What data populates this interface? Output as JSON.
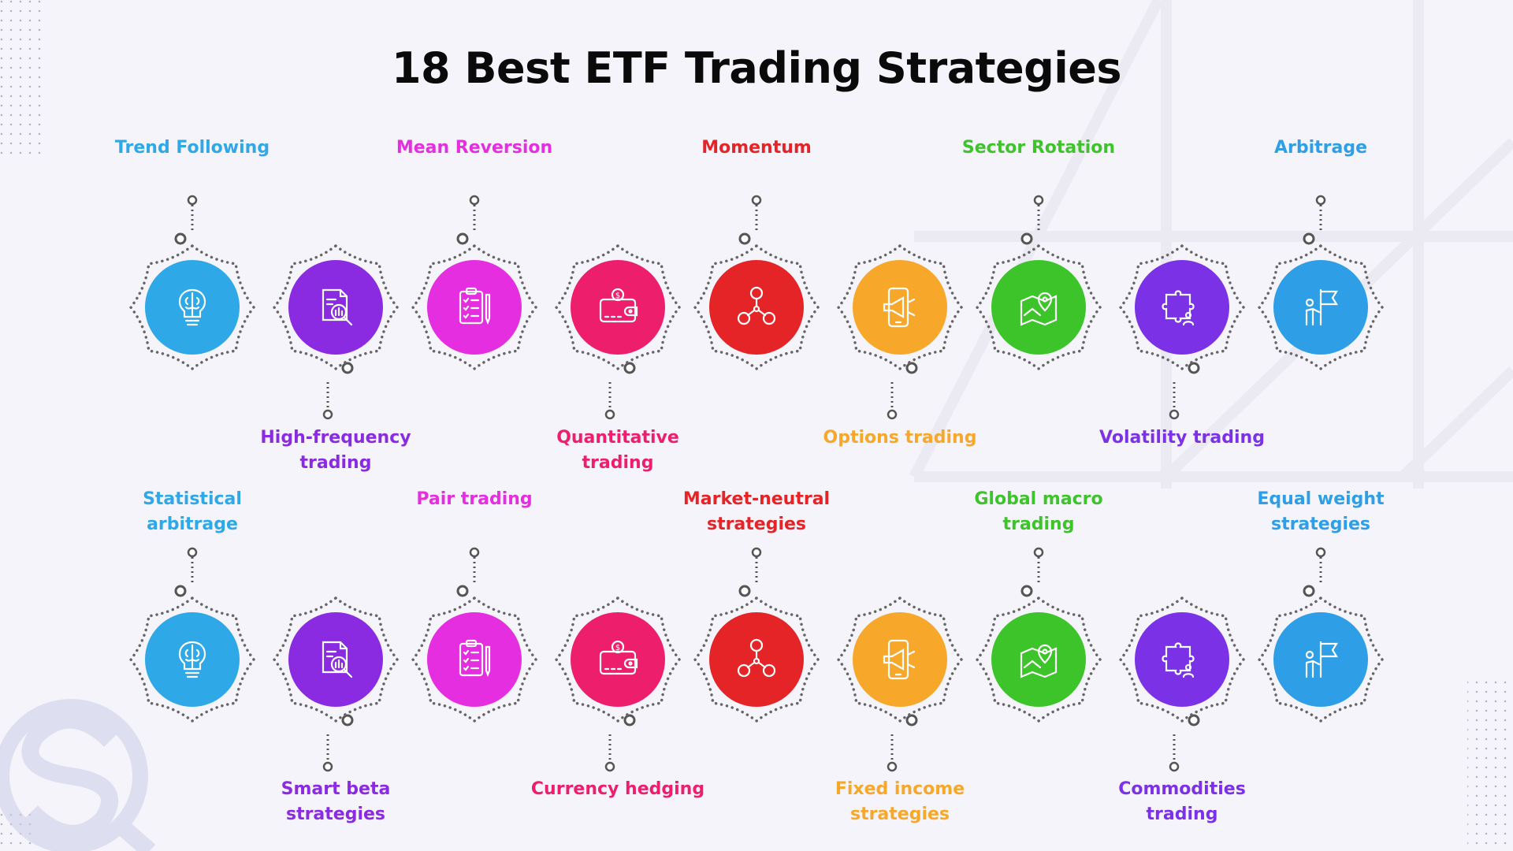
{
  "title": "18 Best ETF Trading Strategies",
  "row1": [
    {
      "label": "Trend Following",
      "color": "#2ea8e6",
      "icon": "brain-bulb-icon",
      "label_position": "top"
    },
    {
      "label": "High-frequency trading",
      "color": "#8a2be2",
      "icon": "document-search-icon",
      "label_position": "bottom"
    },
    {
      "label": "Mean Reversion",
      "color": "#e52ee0",
      "icon": "clipboard-checklist-icon",
      "label_position": "top"
    },
    {
      "label": "Quantitative trading",
      "color": "#ed1f6d",
      "icon": "wallet-icon",
      "label_position": "bottom"
    },
    {
      "label": "Momentum",
      "color": "#e42427",
      "icon": "network-people-icon",
      "label_position": "top"
    },
    {
      "label": "Options trading",
      "color": "#f7a82a",
      "icon": "phone-megaphone-icon",
      "label_position": "bottom"
    },
    {
      "label": "Sector Rotation",
      "color": "#3dc42a",
      "icon": "map-pin-icon",
      "label_position": "top"
    },
    {
      "label": "Volatility trading",
      "color": "#7b32e6",
      "icon": "puzzle-person-icon",
      "label_position": "bottom"
    },
    {
      "label": "Arbitrage",
      "color": "#2e9fe6",
      "icon": "person-flag-icon",
      "label_position": "top"
    }
  ],
  "row2": [
    {
      "label": "Statistical arbitrage",
      "color": "#2ea8e6",
      "icon": "brain-bulb-icon",
      "label_position": "top"
    },
    {
      "label": "Smart beta strategies",
      "color": "#8a2be2",
      "icon": "document-search-icon",
      "label_position": "bottom"
    },
    {
      "label": "Pair trading",
      "color": "#e52ee0",
      "icon": "clipboard-checklist-icon",
      "label_position": "top"
    },
    {
      "label": "Currency hedging",
      "color": "#ed1f6d",
      "icon": "wallet-icon",
      "label_position": "bottom"
    },
    {
      "label": "Market-neutral strategies",
      "color": "#e42427",
      "icon": "network-people-icon",
      "label_position": "top"
    },
    {
      "label": "Fixed income strategies",
      "color": "#f7a82a",
      "icon": "phone-megaphone-icon",
      "label_position": "bottom"
    },
    {
      "label": "Global macro trading",
      "color": "#3dc42a",
      "icon": "map-pin-icon",
      "label_position": "top"
    },
    {
      "label": "Commodities trading",
      "color": "#7b32e6",
      "icon": "puzzle-person-icon",
      "label_position": "bottom"
    },
    {
      "label": "Equal weight strategies",
      "color": "#2e9fe6",
      "icon": "person-flag-icon",
      "label_position": "top"
    }
  ]
}
